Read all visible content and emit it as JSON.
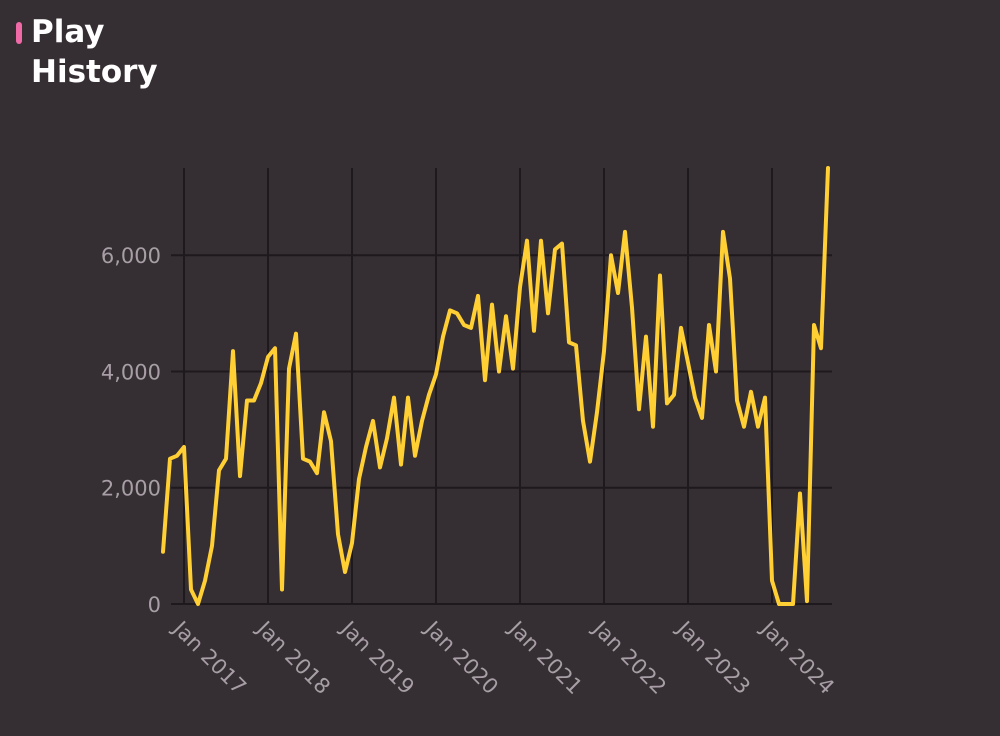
{
  "header": {
    "title": "Play History",
    "accent_color": "#f06aa8"
  },
  "chart_data": {
    "type": "line",
    "title": "Play History",
    "xlabel": "",
    "ylabel": "",
    "grid": true,
    "line_color": "#ffcf33",
    "x_tick_labels": [
      "Jan 2017",
      "Jan 2018",
      "Jan 2019",
      "Jan 2020",
      "Jan 2021",
      "Jan 2022",
      "Jan 2023",
      "Jan 2024"
    ],
    "y_ticks": [
      0,
      2000,
      4000,
      6000
    ],
    "y_tick_labels": [
      "0",
      "2,000",
      "4,000",
      "6,000"
    ],
    "ylim": [
      0,
      7500
    ],
    "xlim": [
      "2016-10",
      "2024-05"
    ],
    "series": [
      {
        "x": [
          "2016-10",
          "2016-11",
          "2016-12",
          "2017-01",
          "2017-02",
          "2017-03",
          "2017-04",
          "2017-05",
          "2017-06",
          "2017-07",
          "2017-08",
          "2017-09",
          "2017-10",
          "2017-11",
          "2017-12",
          "2018-01",
          "2018-02",
          "2018-03",
          "2018-04",
          "2018-05",
          "2018-06",
          "2018-07",
          "2018-08",
          "2018-09",
          "2018-10",
          "2018-11",
          "2018-12",
          "2019-01",
          "2019-02",
          "2019-03",
          "2019-04",
          "2019-05",
          "2019-06",
          "2019-07",
          "2019-08",
          "2019-09",
          "2019-10",
          "2019-11",
          "2019-12",
          "2020-01",
          "2020-02",
          "2020-03",
          "2020-04",
          "2020-05",
          "2020-06",
          "2020-07",
          "2020-08",
          "2020-09",
          "2020-10",
          "2020-11",
          "2020-12",
          "2021-01",
          "2021-02",
          "2021-03",
          "2021-04",
          "2021-05",
          "2021-06",
          "2021-07",
          "2021-08",
          "2021-09",
          "2021-10",
          "2021-11",
          "2021-12",
          "2022-01",
          "2022-02",
          "2022-03",
          "2022-04",
          "2022-05",
          "2022-06",
          "2022-07",
          "2022-08",
          "2022-09",
          "2022-10",
          "2022-11",
          "2022-12",
          "2023-01",
          "2023-02",
          "2023-03",
          "2023-04",
          "2023-05",
          "2023-06",
          "2023-07",
          "2023-08",
          "2023-09",
          "2023-10",
          "2023-11",
          "2023-12",
          "2024-01",
          "2024-02",
          "2024-03",
          "2024-04",
          "2024-05",
          "2024-06",
          "2024-07",
          "2024-08",
          "2024-09"
        ],
        "values": [
          900,
          2500,
          2550,
          2700,
          250,
          0,
          400,
          1000,
          2300,
          2500,
          4350,
          2200,
          3500,
          3500,
          3800,
          4250,
          4400,
          250,
          4050,
          4650,
          2500,
          2450,
          2250,
          3300,
          2800,
          1200,
          550,
          1050,
          2150,
          2700,
          3150,
          2350,
          2850,
          3550,
          2400,
          3550,
          2550,
          3150,
          3600,
          3950,
          4600,
          5050,
          5000,
          4800,
          4750,
          5300,
          3850,
          5150,
          4000,
          4950,
          4050,
          5450,
          6250,
          4700,
          6250,
          5000,
          6100,
          6200,
          4500,
          4450,
          3150,
          2450,
          3300,
          4350,
          6000,
          5350,
          6400,
          5100,
          3350,
          4600,
          3050,
          5650,
          3450,
          3600,
          4750,
          4150,
          3550,
          3200,
          4800,
          4000,
          6400,
          5600,
          3500,
          3050,
          3650,
          3050,
          3550,
          400,
          0,
          0,
          0,
          1900,
          50,
          4800,
          4400,
          7500
        ]
      }
    ]
  }
}
